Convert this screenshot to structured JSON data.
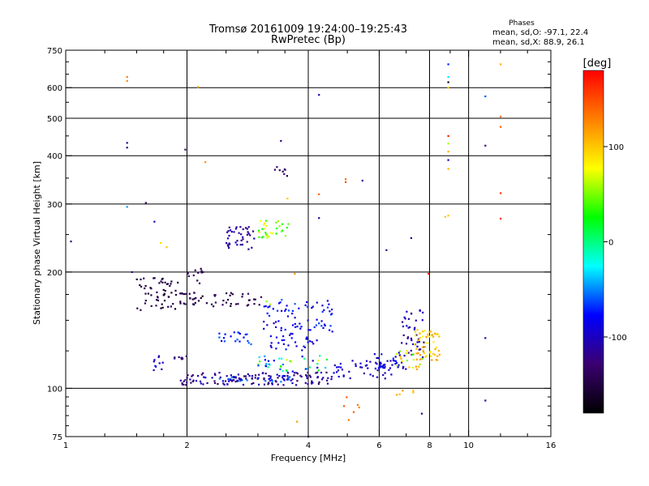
{
  "chart_data": {
    "type": "scatter",
    "title": "Tromsø 20161009 19:24:00–19:25:43",
    "subtitle": "RwPretec (Bp)",
    "xlabel": "Frequency [MHz]",
    "ylabel": "Stationary phase Virtual Height [km]",
    "x_scale": "log",
    "y_scale": "log",
    "xlim": [
      1,
      16
    ],
    "ylim": [
      75,
      750
    ],
    "x_ticks": [
      1,
      2,
      4,
      6,
      8,
      10,
      16
    ],
    "y_ticks": [
      75,
      100,
      200,
      300,
      400,
      500,
      600,
      750
    ],
    "grid": true,
    "stats": {
      "title": "Phases",
      "line1": "mean, sd,O: -97.1, 22.4",
      "line2": "mean, sd,X:  88.9, 26.1"
    },
    "colorbar": {
      "label": "[deg]",
      "range": [
        -180,
        180
      ],
      "ticks": [
        100,
        0,
        -100
      ],
      "colormap": [
        "#000000",
        "#3a0070",
        "#0000ff",
        "#00ffff",
        "#00ff00",
        "#ffff00",
        "#ff8000",
        "#ff0000"
      ]
    },
    "clusters": [
      {
        "x_range": [
          1.9,
          4.6
        ],
        "y_range": [
          102,
          110
        ],
        "phase_range": [
          -140,
          -95
        ],
        "count": 130,
        "seed": 1
      },
      {
        "x_range": [
          2.4,
          3.6
        ],
        "y_range": [
          104,
          108
        ],
        "phase_range": [
          -115,
          -45
        ],
        "count": 35,
        "seed": 2
      },
      {
        "x_range": [
          4.6,
          6.5
        ],
        "y_range": [
          106,
          118
        ],
        "phase_range": [
          -110,
          -85
        ],
        "count": 45,
        "seed": 3
      },
      {
        "x_range": [
          5.8,
          7.0
        ],
        "y_range": [
          112,
          124
        ],
        "phase_range": [
          -110,
          -70
        ],
        "count": 35,
        "seed": 4
      },
      {
        "x_range": [
          6.8,
          7.8
        ],
        "y_range": [
          120,
          160
        ],
        "phase_range": [
          -125,
          -90
        ],
        "count": 40,
        "seed": 5
      },
      {
        "x_range": [
          7.2,
          8.5
        ],
        "y_range": [
          118,
          142
        ],
        "phase_range": [
          70,
          125
        ],
        "count": 55,
        "seed": 6
      },
      {
        "x_range": [
          6.6,
          7.8
        ],
        "y_range": [
          112,
          126
        ],
        "phase_range": [
          20,
          120
        ],
        "count": 20,
        "seed": 7
      },
      {
        "x_range": [
          1.5,
          1.9
        ],
        "y_range": [
          158,
          193
        ],
        "phase_range": [
          -165,
          -135
        ],
        "count": 55,
        "seed": 8
      },
      {
        "x_range": [
          1.9,
          3.1
        ],
        "y_range": [
          163,
          178
        ],
        "phase_range": [
          -160,
          -130
        ],
        "count": 55,
        "seed": 9
      },
      {
        "x_range": [
          2.0,
          2.2
        ],
        "y_range": [
          185,
          205
        ],
        "phase_range": [
          -155,
          -130
        ],
        "count": 12,
        "seed": 10
      },
      {
        "x_range": [
          3.1,
          4.6
        ],
        "y_range": [
          140,
          170
        ],
        "phase_range": [
          -105,
          -55
        ],
        "count": 70,
        "seed": 11
      },
      {
        "x_range": [
          3.2,
          4.3
        ],
        "y_range": [
          125,
          140
        ],
        "phase_range": [
          -110,
          -70
        ],
        "count": 30,
        "seed": 12
      },
      {
        "x_range": [
          2.4,
          2.9
        ],
        "y_range": [
          130,
          140
        ],
        "phase_range": [
          -85,
          -55
        ],
        "count": 20,
        "seed": 13
      },
      {
        "x_range": [
          3.0,
          4.5
        ],
        "y_range": [
          110,
          122
        ],
        "phase_range": [
          -110,
          90
        ],
        "count": 40,
        "seed": 14
      },
      {
        "x_range": [
          2.5,
          2.95
        ],
        "y_range": [
          228,
          262
        ],
        "phase_range": [
          -125,
          -95
        ],
        "count": 40,
        "seed": 15
      },
      {
        "x_range": [
          3.0,
          3.6
        ],
        "y_range": [
          245,
          275
        ],
        "phase_range": [
          20,
          95
        ],
        "count": 30,
        "seed": 16
      },
      {
        "x_range": [
          3.3,
          3.6
        ],
        "y_range": [
          352,
          375
        ],
        "phase_range": [
          -150,
          -120
        ],
        "count": 8,
        "seed": 17
      },
      {
        "x_range": [
          1.65,
          1.75
        ],
        "y_range": [
          110,
          122
        ],
        "phase_range": [
          -110,
          -80
        ],
        "count": 10,
        "seed": 18
      },
      {
        "x_range": [
          1.8,
          2.0
        ],
        "y_range": [
          117,
          122
        ],
        "phase_range": [
          -140,
          -110
        ],
        "count": 8,
        "seed": 19
      },
      {
        "x_range": [
          4.9,
          5.4
        ],
        "y_range": [
          80,
          95
        ],
        "phase_range": [
          110,
          160
        ],
        "count": 6,
        "seed": 20
      },
      {
        "x_range": [
          6.5,
          7.3
        ],
        "y_range": [
          96,
          100
        ],
        "phase_range": [
          100,
          130
        ],
        "count": 5,
        "seed": 21
      }
    ],
    "points": [
      {
        "x": 1.42,
        "y": 640,
        "phase": 130
      },
      {
        "x": 1.42,
        "y": 625,
        "phase": 125
      },
      {
        "x": 1.42,
        "y": 432,
        "phase": -120
      },
      {
        "x": 1.42,
        "y": 420,
        "phase": -120
      },
      {
        "x": 1.42,
        "y": 295,
        "phase": -45
      },
      {
        "x": 1.58,
        "y": 302,
        "phase": -140
      },
      {
        "x": 1.66,
        "y": 270,
        "phase": -110
      },
      {
        "x": 1.72,
        "y": 238,
        "phase": 90
      },
      {
        "x": 1.78,
        "y": 232,
        "phase": 100
      },
      {
        "x": 1.46,
        "y": 200,
        "phase": -110
      },
      {
        "x": 1.03,
        "y": 240,
        "phase": -120
      },
      {
        "x": 1.98,
        "y": 415,
        "phase": -130
      },
      {
        "x": 2.13,
        "y": 603,
        "phase": 110
      },
      {
        "x": 2.22,
        "y": 385,
        "phase": 120
      },
      {
        "x": 3.42,
        "y": 437,
        "phase": -120
      },
      {
        "x": 4.25,
        "y": 575,
        "phase": -100
      },
      {
        "x": 4.25,
        "y": 318,
        "phase": 140
      },
      {
        "x": 4.25,
        "y": 276,
        "phase": -110
      },
      {
        "x": 4.95,
        "y": 342,
        "phase": 150
      },
      {
        "x": 4.95,
        "y": 348,
        "phase": 140
      },
      {
        "x": 5.45,
        "y": 345,
        "phase": -110
      },
      {
        "x": 6.25,
        "y": 228,
        "phase": -120
      },
      {
        "x": 7.2,
        "y": 245,
        "phase": -110
      },
      {
        "x": 7.95,
        "y": 198,
        "phase": 170
      },
      {
        "x": 8.9,
        "y": 690,
        "phase": -70
      },
      {
        "x": 8.9,
        "y": 640,
        "phase": -30
      },
      {
        "x": 8.9,
        "y": 620,
        "phase": -170
      },
      {
        "x": 8.9,
        "y": 600,
        "phase": 100
      },
      {
        "x": 8.9,
        "y": 450,
        "phase": 170
      },
      {
        "x": 8.9,
        "y": 430,
        "phase": 60
      },
      {
        "x": 8.9,
        "y": 410,
        "phase": 110
      },
      {
        "x": 8.9,
        "y": 390,
        "phase": -100
      },
      {
        "x": 8.9,
        "y": 370,
        "phase": 110
      },
      {
        "x": 8.75,
        "y": 278,
        "phase": 100
      },
      {
        "x": 8.9,
        "y": 280,
        "phase": 100
      },
      {
        "x": 11.0,
        "y": 570,
        "phase": -60
      },
      {
        "x": 11.0,
        "y": 425,
        "phase": -130
      },
      {
        "x": 11.0,
        "y": 135,
        "phase": -110
      },
      {
        "x": 11.0,
        "y": 93,
        "phase": -110
      },
      {
        "x": 12.0,
        "y": 690,
        "phase": 110
      },
      {
        "x": 12.0,
        "y": 505,
        "phase": 130
      },
      {
        "x": 12.0,
        "y": 475,
        "phase": 140
      },
      {
        "x": 12.0,
        "y": 320,
        "phase": 160
      },
      {
        "x": 12.0,
        "y": 275,
        "phase": 170
      },
      {
        "x": 7.65,
        "y": 86,
        "phase": -120
      },
      {
        "x": 4.0,
        "y": 75,
        "phase": -110
      },
      {
        "x": 3.75,
        "y": 82,
        "phase": 120
      },
      {
        "x": 3.7,
        "y": 198,
        "phase": 120
      },
      {
        "x": 3.55,
        "y": 310,
        "phase": 100
      },
      {
        "x": 3.15,
        "y": 168,
        "phase": 50
      },
      {
        "x": 3.22,
        "y": 165,
        "phase": 60
      }
    ]
  }
}
